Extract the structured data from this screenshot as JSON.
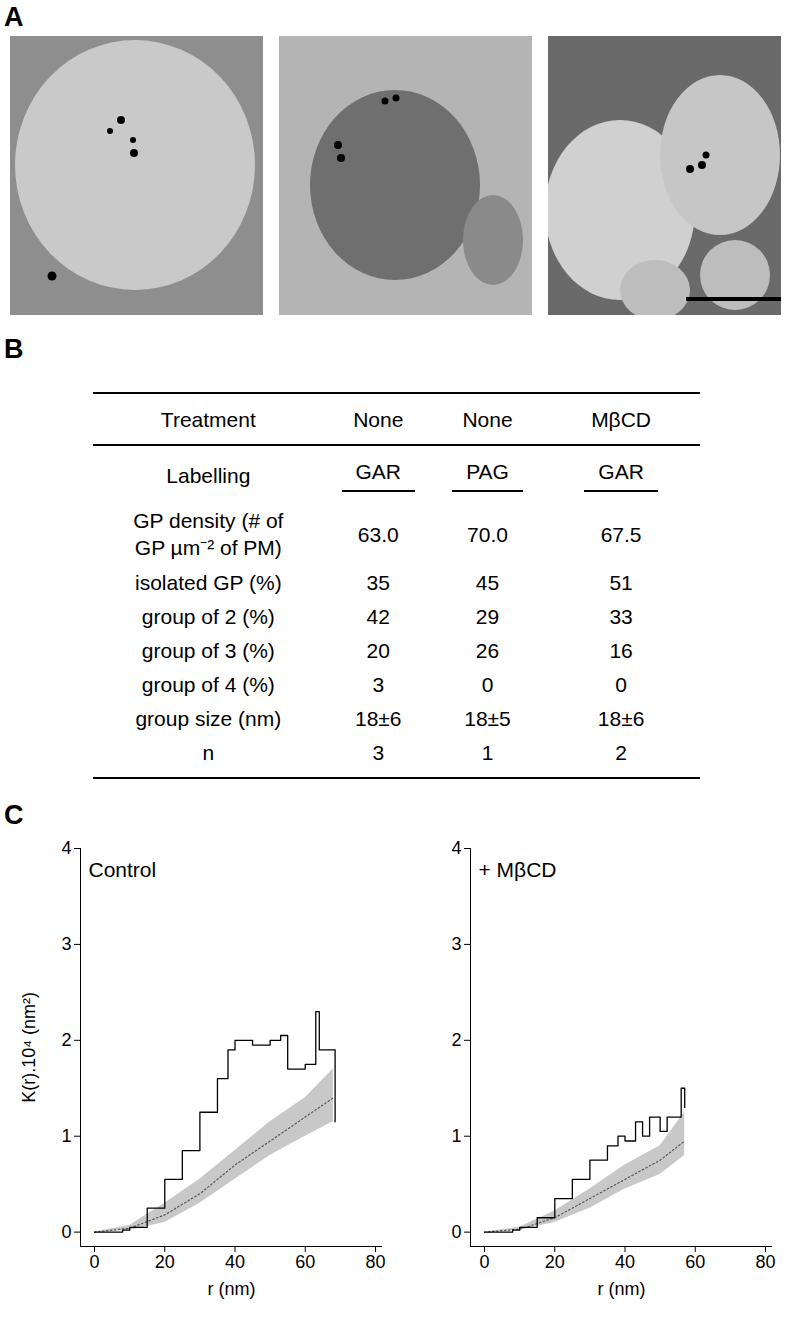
{
  "panel_labels": [
    "A",
    "B",
    "C"
  ],
  "table": {
    "header": [
      "Treatment",
      "None",
      "None",
      "MβCD"
    ],
    "subheader": [
      "Labelling",
      "GAR",
      "PAG",
      "GAR"
    ],
    "rows": [
      [
        [
          "GP density (# of",
          "GP µm⁻² of PM)"
        ],
        "63.0",
        "70.0",
        "67.5"
      ],
      [
        [
          "isolated GP (%)"
        ],
        "35",
        "45",
        "51"
      ],
      [
        [
          "group of 2 (%)"
        ],
        "42",
        "29",
        "33"
      ],
      [
        [
          "group of 3 (%)"
        ],
        "20",
        "26",
        "16"
      ],
      [
        [
          "group of 4 (%)"
        ],
        "3",
        "0",
        "0"
      ],
      [
        [
          "group size (nm)"
        ],
        "18±6",
        "18±5",
        "18±6"
      ],
      [
        [
          "n"
        ],
        "3",
        "1",
        "2"
      ]
    ]
  },
  "chart_data": [
    {
      "type": "line",
      "title": "Control",
      "xlabel": "r (nm)",
      "ylabel": "K(r).10⁴ (nm²)",
      "xlim": [
        -4,
        82
      ],
      "xticks": [
        0,
        20,
        40,
        60,
        80
      ],
      "ylim": [
        -0.15,
        4
      ],
      "yticks": [
        0,
        1,
        2,
        3,
        4
      ],
      "grid": false,
      "series": [
        {
          "type": "area",
          "color": "#c8c8c8",
          "x": [
            0,
            10,
            20,
            30,
            40,
            50,
            60,
            68
          ],
          "lower": [
            0,
            0.02,
            0.1,
            0.3,
            0.55,
            0.8,
            1.0,
            1.15
          ],
          "upper": [
            0,
            0.07,
            0.3,
            0.55,
            0.85,
            1.15,
            1.4,
            1.7
          ]
        },
        {
          "type": "line",
          "color": "#555555",
          "line_style": "dotted",
          "x": [
            0,
            10,
            20,
            30,
            40,
            50,
            60,
            68
          ],
          "values": [
            0,
            0.04,
            0.18,
            0.4,
            0.7,
            0.95,
            1.2,
            1.4
          ]
        },
        {
          "type": "line",
          "color": "#000000",
          "line_style": "step",
          "x": [
            0,
            8,
            10,
            15,
            20,
            25,
            30,
            35,
            38,
            40,
            45,
            50,
            53,
            55,
            60,
            62,
            63,
            64,
            68,
            68.5
          ],
          "values": [
            0,
            0.02,
            0.05,
            0.25,
            0.55,
            0.85,
            1.25,
            1.6,
            1.9,
            2.0,
            1.95,
            2.0,
            2.05,
            1.7,
            1.75,
            1.75,
            2.3,
            1.9,
            1.9,
            1.15
          ]
        }
      ]
    },
    {
      "type": "line",
      "title": "+ MβCD",
      "xlabel": "r (nm)",
      "xlim": [
        -4,
        82
      ],
      "xticks": [
        0,
        20,
        40,
        60,
        80
      ],
      "ylim": [
        -0.15,
        4
      ],
      "yticks": [
        0,
        1,
        2,
        3,
        4
      ],
      "grid": false,
      "series": [
        {
          "type": "area",
          "color": "#c8c8c8",
          "x": [
            0,
            10,
            20,
            30,
            40,
            50,
            57
          ],
          "lower": [
            0,
            0.02,
            0.1,
            0.25,
            0.45,
            0.6,
            0.8
          ],
          "upper": [
            0,
            0.05,
            0.22,
            0.45,
            0.7,
            0.9,
            1.25
          ]
        },
        {
          "type": "line",
          "color": "#555555",
          "line_style": "dotted",
          "x": [
            0,
            10,
            20,
            30,
            40,
            50,
            57
          ],
          "values": [
            0,
            0.03,
            0.15,
            0.35,
            0.55,
            0.75,
            0.95
          ]
        },
        {
          "type": "line",
          "color": "#000000",
          "line_style": "step",
          "x": [
            0,
            8,
            10,
            15,
            20,
            25,
            30,
            35,
            38,
            40,
            43,
            45,
            47,
            50,
            52,
            55,
            56,
            57
          ],
          "values": [
            0,
            0.02,
            0.05,
            0.15,
            0.35,
            0.55,
            0.75,
            0.9,
            1.0,
            0.95,
            1.15,
            1.0,
            1.2,
            1.05,
            1.2,
            1.2,
            1.5,
            1.3
          ]
        }
      ]
    }
  ]
}
